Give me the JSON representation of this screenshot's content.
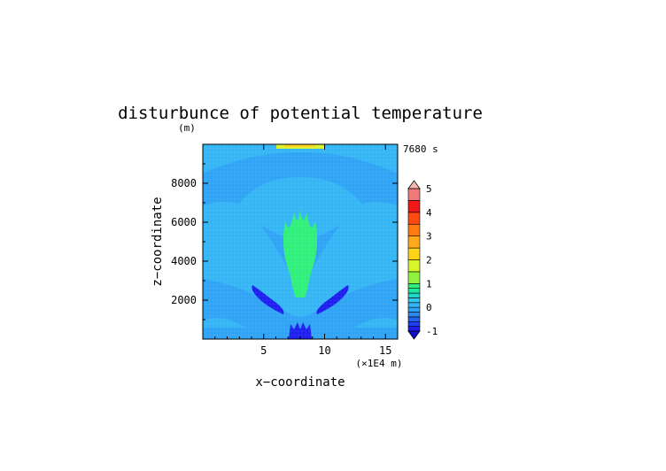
{
  "chart_data": {
    "type": "heatmap",
    "title": "disturbunce of potential temperature",
    "ylabel_unit": "(m)",
    "time_label": "7680 s",
    "xlabel": "x−coordinate",
    "ylabel": "z−coordinate",
    "x_unit_label": "(×1E4 m)",
    "xlim": [
      0,
      16
    ],
    "ylim": [
      0,
      10000
    ],
    "x_ticks": [
      5,
      10,
      15
    ],
    "y_ticks": [
      2000,
      4000,
      6000,
      8000
    ],
    "colorbar": {
      "range": [
        -1,
        5
      ],
      "tick_labels": [
        "-1",
        "0",
        "1",
        "2",
        "3",
        "4",
        "5"
      ],
      "levels": [
        {
          "from": -1.0,
          "to": -0.8,
          "color": "#1d1df0"
        },
        {
          "from": -0.8,
          "to": -0.6,
          "color": "#1d3ef5"
        },
        {
          "from": -0.6,
          "to": -0.4,
          "color": "#2163f0"
        },
        {
          "from": -0.4,
          "to": -0.2,
          "color": "#2a88f0"
        },
        {
          "from": -0.2,
          "to": 0.0,
          "color": "#2ea3f5"
        },
        {
          "from": 0.0,
          "to": 0.2,
          "color": "#33b5f5"
        },
        {
          "from": 0.2,
          "to": 0.4,
          "color": "#2fc8ee"
        },
        {
          "from": 0.4,
          "to": 0.6,
          "color": "#20d8c8"
        },
        {
          "from": 0.6,
          "to": 0.8,
          "color": "#1ee6a0"
        },
        {
          "from": 0.8,
          "to": 1.0,
          "color": "#2ef07a"
        },
        {
          "from": 1.0,
          "to": 1.5,
          "color": "#8ff23e"
        },
        {
          "from": 1.5,
          "to": 2.0,
          "color": "#d8f52a"
        },
        {
          "from": 2.0,
          "to": 2.5,
          "color": "#ffd21a"
        },
        {
          "from": 2.5,
          "to": 3.0,
          "color": "#ffaa1a"
        },
        {
          "from": 3.0,
          "to": 3.5,
          "color": "#ff7a10"
        },
        {
          "from": 3.5,
          "to": 4.0,
          "color": "#ff4a10"
        },
        {
          "from": 4.0,
          "to": 4.5,
          "color": "#f01818"
        },
        {
          "from": 4.5,
          "to": 5.0,
          "color": "#f07a7a"
        },
        {
          "from": 5.0,
          "to": 6.0,
          "color": "#f5b8b0"
        }
      ]
    },
    "field_regions": [
      {
        "name": "background",
        "value": 0.05
      },
      {
        "name": "upper-arch",
        "value": -0.15
      },
      {
        "name": "lower-band",
        "value": -0.15
      },
      {
        "name": "central-plume",
        "value": 0.9
      },
      {
        "name": "left-wing-minimum",
        "value": -0.9
      },
      {
        "name": "right-wing-minimum",
        "value": -0.9
      },
      {
        "name": "surface-minimum",
        "value": -1.0
      },
      {
        "name": "top-maximum",
        "value": 1.8
      }
    ]
  }
}
